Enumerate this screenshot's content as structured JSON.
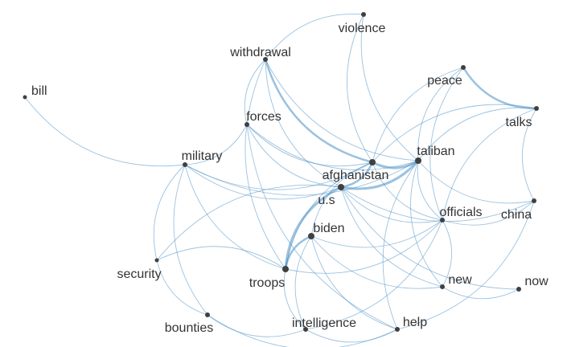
{
  "graph": {
    "edge_color": "#4a8fc4",
    "node_color": "#404040",
    "label_color": "#333333",
    "nodes": [
      {
        "id": "violence",
        "label": "violence"
      },
      {
        "id": "withdrawal",
        "label": "withdrawal"
      },
      {
        "id": "bill",
        "label": "bill"
      },
      {
        "id": "peace",
        "label": "peace"
      },
      {
        "id": "talks",
        "label": "talks"
      },
      {
        "id": "forces",
        "label": "forces"
      },
      {
        "id": "military",
        "label": "military"
      },
      {
        "id": "taliban",
        "label": "taliban"
      },
      {
        "id": "afghanistan",
        "label": "afghanistan"
      },
      {
        "id": "us",
        "label": "u.s"
      },
      {
        "id": "officials",
        "label": "officials"
      },
      {
        "id": "china",
        "label": "china"
      },
      {
        "id": "biden",
        "label": "biden"
      },
      {
        "id": "security",
        "label": "security"
      },
      {
        "id": "troops",
        "label": "troops"
      },
      {
        "id": "new",
        "label": "new"
      },
      {
        "id": "now",
        "label": "now"
      },
      {
        "id": "bounties",
        "label": "bounties"
      },
      {
        "id": "intelligence",
        "label": "intelligence"
      },
      {
        "id": "help",
        "label": "help"
      }
    ],
    "edges": [
      {
        "source": "afghanistan",
        "target": "taliban",
        "weight": 4
      },
      {
        "source": "us",
        "target": "taliban",
        "weight": 4
      },
      {
        "source": "us",
        "target": "afghanistan",
        "weight": 3
      },
      {
        "source": "us",
        "target": "troops",
        "weight": 4
      },
      {
        "source": "biden",
        "target": "troops",
        "weight": 3
      },
      {
        "source": "withdrawal",
        "target": "afghanistan",
        "weight": 3
      },
      {
        "source": "peace",
        "target": "talks",
        "weight": 3
      },
      {
        "source": "violence",
        "target": "withdrawal",
        "weight": 1
      },
      {
        "source": "violence",
        "target": "afghanistan",
        "weight": 1
      },
      {
        "source": "violence",
        "target": "taliban",
        "weight": 1
      },
      {
        "source": "withdrawal",
        "target": "taliban",
        "weight": 1
      },
      {
        "source": "withdrawal",
        "target": "us",
        "weight": 1
      },
      {
        "source": "withdrawal",
        "target": "troops",
        "weight": 1
      },
      {
        "source": "withdrawal",
        "target": "forces",
        "weight": 1
      },
      {
        "source": "bill",
        "target": "military",
        "weight": 1
      },
      {
        "source": "peace",
        "target": "taliban",
        "weight": 1
      },
      {
        "source": "peace",
        "target": "afghanistan",
        "weight": 1
      },
      {
        "source": "peace",
        "target": "officials",
        "weight": 1
      },
      {
        "source": "talks",
        "target": "taliban",
        "weight": 1
      },
      {
        "source": "talks",
        "target": "afghanistan",
        "weight": 1
      },
      {
        "source": "talks",
        "target": "china",
        "weight": 1
      },
      {
        "source": "talks",
        "target": "officials",
        "weight": 1
      },
      {
        "source": "forces",
        "target": "afghanistan",
        "weight": 1
      },
      {
        "source": "forces",
        "target": "taliban",
        "weight": 1
      },
      {
        "source": "forces",
        "target": "us",
        "weight": 1
      },
      {
        "source": "forces",
        "target": "help",
        "weight": 1
      },
      {
        "source": "military",
        "target": "afghanistan",
        "weight": 1
      },
      {
        "source": "military",
        "target": "us",
        "weight": 1
      },
      {
        "source": "military",
        "target": "taliban",
        "weight": 1
      },
      {
        "source": "military",
        "target": "security",
        "weight": 1
      },
      {
        "source": "military",
        "target": "bounties",
        "weight": 1
      },
      {
        "source": "military",
        "target": "troops",
        "weight": 1
      },
      {
        "source": "military",
        "target": "forces",
        "weight": 1
      },
      {
        "source": "taliban",
        "target": "officials",
        "weight": 1
      },
      {
        "source": "taliban",
        "target": "china",
        "weight": 1
      },
      {
        "source": "taliban",
        "target": "new",
        "weight": 1
      },
      {
        "source": "taliban",
        "target": "help",
        "weight": 1
      },
      {
        "source": "afghanistan",
        "target": "officials",
        "weight": 1
      },
      {
        "source": "afghanistan",
        "target": "biden",
        "weight": 1
      },
      {
        "source": "afghanistan",
        "target": "troops",
        "weight": 1
      },
      {
        "source": "us",
        "target": "officials",
        "weight": 1
      },
      {
        "source": "us",
        "target": "china",
        "weight": 1
      },
      {
        "source": "us",
        "target": "new",
        "weight": 1
      },
      {
        "source": "us",
        "target": "now",
        "weight": 1
      },
      {
        "source": "us",
        "target": "security",
        "weight": 1
      },
      {
        "source": "biden",
        "target": "officials",
        "weight": 1
      },
      {
        "source": "biden",
        "target": "new",
        "weight": 1
      },
      {
        "source": "biden",
        "target": "intelligence",
        "weight": 1
      },
      {
        "source": "biden",
        "target": "help",
        "weight": 1
      },
      {
        "source": "troops",
        "target": "security",
        "weight": 1
      },
      {
        "source": "troops",
        "target": "intelligence",
        "weight": 1
      },
      {
        "source": "troops",
        "target": "officials",
        "weight": 1
      },
      {
        "source": "bounties",
        "target": "intelligence",
        "weight": 1
      },
      {
        "source": "bounties",
        "target": "help",
        "weight": 1
      },
      {
        "source": "intelligence",
        "target": "help",
        "weight": 1
      },
      {
        "source": "intelligence",
        "target": "officials",
        "weight": 1
      },
      {
        "source": "new",
        "target": "now",
        "weight": 1
      },
      {
        "source": "new",
        "target": "officials",
        "weight": 1
      },
      {
        "source": "help",
        "target": "china",
        "weight": 1
      },
      {
        "source": "officials",
        "target": "china",
        "weight": 1
      },
      {
        "source": "security",
        "target": "bounties",
        "weight": 1
      }
    ]
  }
}
